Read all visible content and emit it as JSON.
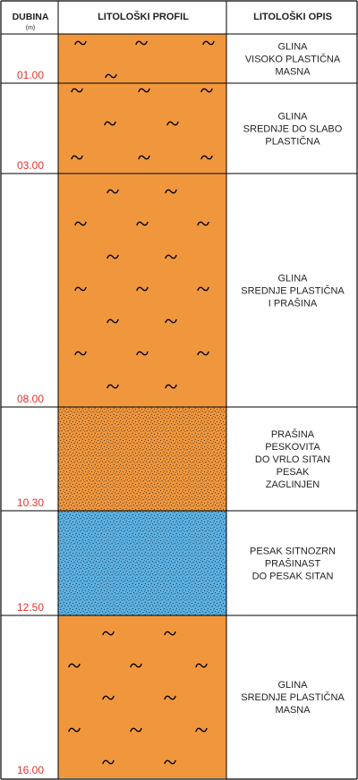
{
  "header": {
    "depth_title": "DUBINA",
    "depth_unit": "(m)",
    "profile_title": "LITOLOŠKI PROFIL",
    "description_title": "LITOLOŠKI OPIS"
  },
  "colors": {
    "depth_label": "#e8322b",
    "clay": "#f0973e",
    "silt": "#f0973e",
    "sand": "#5bb1e3",
    "border": "#000000",
    "text": "#231f20"
  },
  "layers": [
    {
      "to_depth": "01.00",
      "pattern": "clay",
      "description": [
        "GLINA",
        "VISOKO PLASTIČNA",
        "MASNA"
      ]
    },
    {
      "to_depth": "03.00",
      "pattern": "clay",
      "description": [
        "GLINA",
        "SREDNJE DO SLABO",
        "PLASTIČNA"
      ]
    },
    {
      "to_depth": "08.00",
      "pattern": "clay",
      "description": [
        "GLINA",
        "SREDNJE PLASTIČNA",
        "I PRAŠINA"
      ]
    },
    {
      "to_depth": "10.30",
      "pattern": "silt",
      "description": [
        "PRAŠINA",
        "PESKOVITA",
        "DO VRLO SITAN",
        "PESAK",
        "ZAGLINJEN"
      ]
    },
    {
      "to_depth": "12.50",
      "pattern": "sand",
      "description": [
        "PESAK SITNOZRN",
        "PRAŠINAST",
        "DO PESAK SITAN"
      ]
    },
    {
      "to_depth": "16.00",
      "pattern": "clay",
      "description": [
        "GLINA",
        "SREDNJE PLASTIČNA",
        "MASNA"
      ]
    }
  ]
}
